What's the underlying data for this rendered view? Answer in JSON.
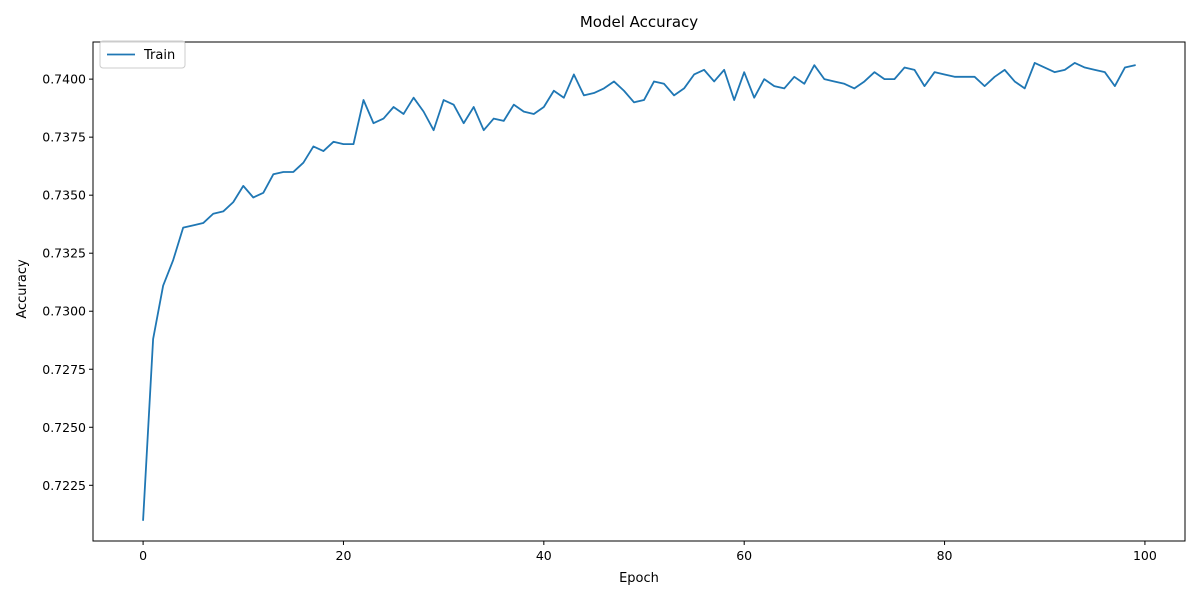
{
  "chart_data": {
    "type": "line",
    "title": "Model Accuracy",
    "xlabel": "Epoch",
    "ylabel": "Accuracy",
    "xlim": [
      -5,
      104
    ],
    "ylim": [
      0.7201,
      0.7416
    ],
    "xticks": [
      0,
      20,
      40,
      60,
      80,
      100
    ],
    "yticks": [
      0.7225,
      0.725,
      0.7275,
      0.73,
      0.7325,
      0.735,
      0.7375,
      0.74
    ],
    "ytick_labels": [
      "0.7225",
      "0.7250",
      "0.7275",
      "0.7300",
      "0.7325",
      "0.7350",
      "0.7375",
      "0.7400"
    ],
    "xtick_labels": [
      "0",
      "20",
      "40",
      "60",
      "80",
      "100"
    ],
    "grid": false,
    "legend_position": "top-left",
    "series": [
      {
        "name": "Train",
        "color": "#1f77b4",
        "x": [
          0,
          1,
          2,
          3,
          4,
          5,
          6,
          7,
          8,
          9,
          10,
          11,
          12,
          13,
          14,
          15,
          16,
          17,
          18,
          19,
          20,
          21,
          22,
          23,
          24,
          25,
          26,
          27,
          28,
          29,
          30,
          31,
          32,
          33,
          34,
          35,
          36,
          37,
          38,
          39,
          40,
          41,
          42,
          43,
          44,
          45,
          46,
          47,
          48,
          49,
          50,
          51,
          52,
          53,
          54,
          55,
          56,
          57,
          58,
          59,
          60,
          61,
          62,
          63,
          64,
          65,
          66,
          67,
          68,
          69,
          70,
          71,
          72,
          73,
          74,
          75,
          76,
          77,
          78,
          79,
          80,
          81,
          82,
          83,
          84,
          85,
          86,
          87,
          88,
          89,
          90,
          91,
          92,
          93,
          94,
          95,
          96,
          97,
          98,
          99
        ],
        "values": [
          0.721,
          0.7288,
          0.7311,
          0.7322,
          0.7336,
          0.7337,
          0.7338,
          0.7342,
          0.7343,
          0.7347,
          0.7354,
          0.7349,
          0.7351,
          0.7359,
          0.736,
          0.736,
          0.7364,
          0.7371,
          0.7369,
          0.7373,
          0.7372,
          0.7372,
          0.7391,
          0.7381,
          0.7383,
          0.7388,
          0.7385,
          0.7392,
          0.7386,
          0.7378,
          0.7391,
          0.7389,
          0.7381,
          0.7388,
          0.7378,
          0.7383,
          0.7382,
          0.7389,
          0.7386,
          0.7385,
          0.7388,
          0.7395,
          0.7392,
          0.7402,
          0.7393,
          0.7394,
          0.7396,
          0.7399,
          0.7395,
          0.739,
          0.7391,
          0.7399,
          0.7398,
          0.7393,
          0.7396,
          0.7402,
          0.7404,
          0.7399,
          0.7404,
          0.7391,
          0.7403,
          0.7392,
          0.74,
          0.7397,
          0.7396,
          0.7401,
          0.7398,
          0.7406,
          0.74,
          0.7399,
          0.7398,
          0.7396,
          0.7399,
          0.7403,
          0.74,
          0.74,
          0.7405,
          0.7404,
          0.7397,
          0.7403,
          0.7402,
          0.7401,
          0.7401,
          0.7401,
          0.7397,
          0.7401,
          0.7404,
          0.7399,
          0.7396,
          0.7407,
          0.7405,
          0.7403,
          0.7404,
          0.7407,
          0.7405,
          0.7404,
          0.7403,
          0.7397,
          0.7405,
          0.7406
        ]
      }
    ]
  }
}
